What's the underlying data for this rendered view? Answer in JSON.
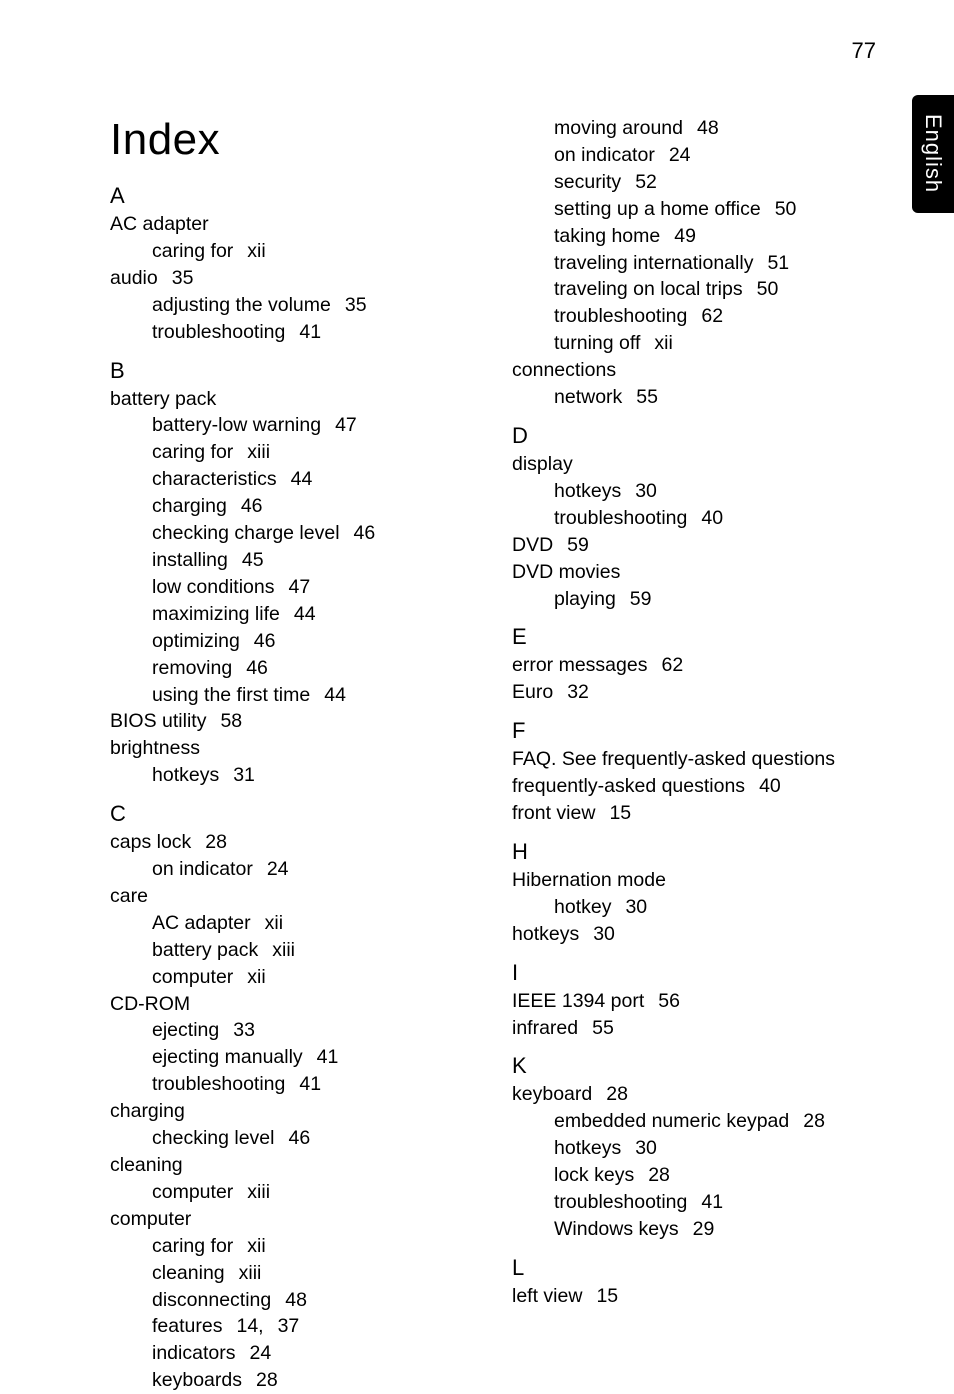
{
  "page_number": "77",
  "side_tab": "English",
  "title": "Index",
  "left_column": [
    {
      "type": "letter",
      "text": "A"
    },
    {
      "type": "entry",
      "text": "AC adapter"
    },
    {
      "type": "sub",
      "label": "caring for",
      "page": "xii"
    },
    {
      "type": "entry_pg",
      "label": "audio",
      "page": "35"
    },
    {
      "type": "sub",
      "label": "adjusting the volume",
      "page": "35"
    },
    {
      "type": "sub",
      "label": "troubleshooting",
      "page": "41"
    },
    {
      "type": "letter",
      "text": "B"
    },
    {
      "type": "entry",
      "text": "battery pack"
    },
    {
      "type": "sub",
      "label": "battery-low warning",
      "page": "47"
    },
    {
      "type": "sub",
      "label": "caring for",
      "page": "xiii"
    },
    {
      "type": "sub",
      "label": "characteristics",
      "page": "44"
    },
    {
      "type": "sub",
      "label": "charging",
      "page": "46"
    },
    {
      "type": "sub",
      "label": "checking charge level",
      "page": "46"
    },
    {
      "type": "sub",
      "label": "installing",
      "page": "45"
    },
    {
      "type": "sub",
      "label": "low conditions",
      "page": "47"
    },
    {
      "type": "sub",
      "label": "maximizing life",
      "page": "44"
    },
    {
      "type": "sub",
      "label": "optimizing",
      "page": "46"
    },
    {
      "type": "sub",
      "label": "removing",
      "page": "46"
    },
    {
      "type": "sub",
      "label": "using the first time",
      "page": "44"
    },
    {
      "type": "entry_pg",
      "label": "BIOS utility",
      "page": "58"
    },
    {
      "type": "entry",
      "text": "brightness"
    },
    {
      "type": "sub",
      "label": "hotkeys",
      "page": "31"
    },
    {
      "type": "letter",
      "text": "C"
    },
    {
      "type": "entry_pg",
      "label": "caps lock",
      "page": "28"
    },
    {
      "type": "sub",
      "label": "on indicator",
      "page": "24"
    },
    {
      "type": "entry",
      "text": "care"
    },
    {
      "type": "sub",
      "label": "AC adapter",
      "page": "xii"
    },
    {
      "type": "sub",
      "label": "battery pack",
      "page": "xiii"
    },
    {
      "type": "sub",
      "label": "computer",
      "page": "xii"
    },
    {
      "type": "entry",
      "text": "CD-ROM"
    },
    {
      "type": "sub",
      "label": "ejecting",
      "page": "33"
    },
    {
      "type": "sub",
      "label": "ejecting manually",
      "page": "41"
    },
    {
      "type": "sub",
      "label": "troubleshooting",
      "page": "41"
    },
    {
      "type": "entry",
      "text": "charging"
    },
    {
      "type": "sub",
      "label": "checking level",
      "page": "46"
    },
    {
      "type": "entry",
      "text": "cleaning"
    },
    {
      "type": "sub",
      "label": "computer",
      "page": "xiii"
    },
    {
      "type": "entry",
      "text": "computer"
    },
    {
      "type": "sub",
      "label": "caring for",
      "page": "xii"
    },
    {
      "type": "sub",
      "label": "cleaning",
      "page": "xiii"
    },
    {
      "type": "sub",
      "label": "disconnecting",
      "page": "48"
    },
    {
      "type": "sub2",
      "label": "features",
      "page1": "14,",
      "page2": "37"
    },
    {
      "type": "sub",
      "label": "indicators",
      "page": "24"
    },
    {
      "type": "sub",
      "label": "keyboards",
      "page": "28"
    }
  ],
  "right_column": [
    {
      "type": "sub",
      "label": "moving around",
      "page": "48"
    },
    {
      "type": "sub",
      "label": "on indicator",
      "page": "24"
    },
    {
      "type": "sub",
      "label": "security",
      "page": "52"
    },
    {
      "type": "sub",
      "label": "setting up a home office",
      "page": "50"
    },
    {
      "type": "sub",
      "label": "taking home",
      "page": "49"
    },
    {
      "type": "sub",
      "label": "traveling internationally",
      "page": "51"
    },
    {
      "type": "sub",
      "label": "traveling on local trips",
      "page": "50"
    },
    {
      "type": "sub",
      "label": "troubleshooting",
      "page": "62"
    },
    {
      "type": "sub",
      "label": "turning off",
      "page": "xii"
    },
    {
      "type": "entry",
      "text": "connections"
    },
    {
      "type": "sub",
      "label": "network",
      "page": "55"
    },
    {
      "type": "letter",
      "text": "D"
    },
    {
      "type": "entry",
      "text": "display"
    },
    {
      "type": "sub",
      "label": "hotkeys",
      "page": "30"
    },
    {
      "type": "sub",
      "label": "troubleshooting",
      "page": "40"
    },
    {
      "type": "entry_pg",
      "label": "DVD",
      "page": "59"
    },
    {
      "type": "entry",
      "text": "DVD movies"
    },
    {
      "type": "sub",
      "label": "playing",
      "page": "59"
    },
    {
      "type": "letter",
      "text": "E"
    },
    {
      "type": "entry_pg",
      "label": "error messages",
      "page": "62"
    },
    {
      "type": "entry_pg",
      "label": "Euro",
      "page": "32"
    },
    {
      "type": "letter",
      "text": "F"
    },
    {
      "type": "entry",
      "text": "FAQ. See frequently-asked questions"
    },
    {
      "type": "entry_pg",
      "label": "frequently-asked questions",
      "page": "40"
    },
    {
      "type": "entry_pg",
      "label": "front view",
      "page": "15"
    },
    {
      "type": "letter",
      "text": "H"
    },
    {
      "type": "entry",
      "text": "Hibernation mode"
    },
    {
      "type": "sub",
      "label": "hotkey",
      "page": "30"
    },
    {
      "type": "entry_pg",
      "label": "hotkeys",
      "page": "30"
    },
    {
      "type": "letter",
      "text": "I"
    },
    {
      "type": "entry_pg",
      "label": "IEEE 1394 port",
      "page": "56"
    },
    {
      "type": "entry_pg",
      "label": "infrared",
      "page": "55"
    },
    {
      "type": "letter",
      "text": "K"
    },
    {
      "type": "entry_pg",
      "label": "keyboard",
      "page": "28"
    },
    {
      "type": "sub",
      "label": "embedded numeric keypad",
      "page": "28"
    },
    {
      "type": "sub",
      "label": "hotkeys",
      "page": "30"
    },
    {
      "type": "sub",
      "label": "lock keys",
      "page": "28"
    },
    {
      "type": "sub",
      "label": "troubleshooting",
      "page": "41"
    },
    {
      "type": "sub",
      "label": "Windows keys",
      "page": "29"
    },
    {
      "type": "letter",
      "text": "L"
    },
    {
      "type": "entry_pg",
      "label": "left view",
      "page": "15"
    }
  ]
}
